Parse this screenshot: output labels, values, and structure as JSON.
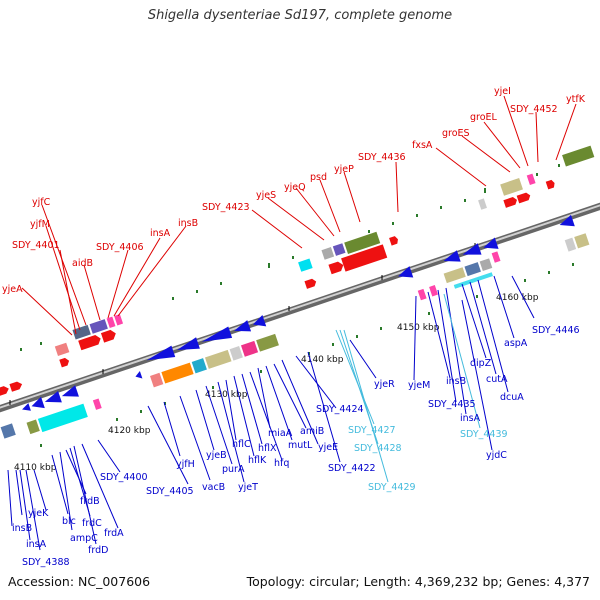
{
  "title": "Shigella dysenteriae Sd197, complete genome",
  "footer": {
    "accession": "Accession: NC_007606",
    "summary": "Topology: circular; Length: 4,369,232 bp; Genes: 4,377"
  },
  "colors": {
    "top_label": "#dd0000",
    "bottom_label": "#0000cc",
    "cyan_label": "#44bbdd",
    "backbone": "#888888"
  },
  "kbp_ticks": [
    {
      "kbp": 4110,
      "label": "4110 kbp"
    },
    {
      "kbp": 4120,
      "label": "4120 kbp"
    },
    {
      "kbp": 4130,
      "label": "4130 kbp"
    },
    {
      "kbp": 4140,
      "label": "4140 kbp"
    },
    {
      "kbp": 4150,
      "label": "4150 kbp"
    },
    {
      "kbp": 4160,
      "label": "4160 kbp"
    }
  ],
  "top_labels": [
    "yjeA",
    "SDY_4401",
    "yjfM",
    "yjfC",
    "aidB",
    "SDY_4406",
    "insA",
    "insB",
    "SDY_4423",
    "yjeS",
    "yjeQ",
    "psd",
    "yjeP",
    "SDY_4436",
    "fxsA",
    "groES",
    "groEL",
    "yjeI",
    "SDY_4452",
    "ytfK"
  ],
  "bottom_labels": [
    "SDY_4388",
    "insA",
    "insB",
    "yjeK",
    "blc",
    "ampC",
    "frdB",
    "frdC",
    "frdD",
    "frdA",
    "SDY_4400",
    "SDY_4405",
    "yjfH",
    "vacB",
    "yjeB",
    "purA",
    "yjeT",
    "hflC",
    "hflK",
    "hfq",
    "hflX",
    "miaA",
    "mutL",
    "amiB",
    "yjeE",
    "SDY_4424",
    "SDY_4422",
    "yjeR",
    "yjeM",
    "insB",
    "SDY_4435",
    "insA",
    "dipZ",
    "cutA",
    "dcuA",
    "yjdC",
    "aspA",
    "SDY_4446"
  ],
  "cyan_labels": [
    "SDY_4427",
    "SDY_4428",
    "SDY_4429",
    "SDY_4439"
  ]
}
